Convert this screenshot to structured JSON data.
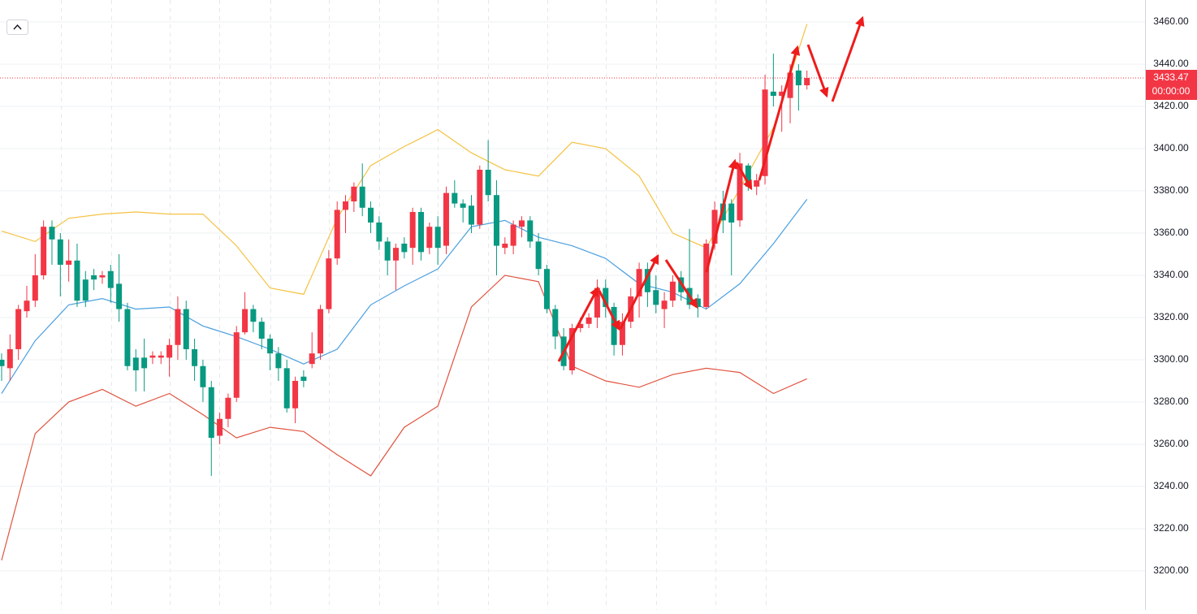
{
  "chart_data": {
    "type": "candlestick",
    "open": [
      3300,
      3296,
      3305,
      3323,
      3328,
      3340,
      3363,
      3357,
      3345,
      3347,
      3338,
      3340,
      3339,
      3342,
      3336,
      3324,
      3301,
      3301,
      3301,
      3301,
      3301,
      3307,
      3324,
      3305,
      3297,
      3287,
      3264,
      3272,
      3282,
      3313,
      3324,
      3318,
      3310,
      3303,
      3296,
      3277,
      3292,
      3298,
      3303,
      3324,
      3348,
      3371,
      3375,
      3382,
      3372,
      3365,
      3356,
      3347,
      3355,
      3353,
      3370,
      3353,
      3363,
      3354,
      3379,
      3374,
      3373,
      3364,
      3390,
      3378,
      3353,
      3354,
      3363,
      3366,
      3356,
      3343,
      3324,
      3311,
      3295,
      3315,
      3317,
      3320,
      3334,
      3325,
      3307,
      3318,
      3330,
      3343,
      3333,
      3324,
      3328,
      3339,
      3334,
      3329,
      3325,
      3355,
      3374,
      3374,
      3366,
      3392,
      3382,
      3387,
      3427,
      3425,
      3424,
      3437,
      3430
    ],
    "high": [
      3303,
      3312,
      3326,
      3335,
      3350,
      3366,
      3366,
      3360,
      3357,
      3355,
      3342,
      3343,
      3342,
      3345,
      3350,
      3327,
      3305,
      3310,
      3304,
      3304,
      3310,
      3330,
      3328,
      3310,
      3300,
      3290,
      3275,
      3284,
      3316,
      3332,
      3326,
      3320,
      3312,
      3306,
      3300,
      3292,
      3295,
      3313,
      3326,
      3352,
      3375,
      3378,
      3384,
      3393,
      3375,
      3368,
      3358,
      3355,
      3358,
      3372,
      3372,
      3365,
      3368,
      3382,
      3385,
      3376,
      3378,
      3392,
      3404,
      3385,
      3358,
      3366,
      3368,
      3368,
      3360,
      3345,
      3326,
      3315,
      3317,
      3320,
      3322,
      3338,
      3338,
      3327,
      3322,
      3334,
      3346,
      3346,
      3340,
      3332,
      3340,
      3342,
      3362,
      3331,
      3357,
      3375,
      3380,
      3376,
      3398,
      3393,
      3388,
      3435,
      3445,
      3430,
      3440,
      3440,
      3437
    ],
    "low": [
      3290,
      3290,
      3300,
      3320,
      3325,
      3338,
      3345,
      3330,
      3337,
      3325,
      3325,
      3333,
      3336,
      3327,
      3318,
      3295,
      3285,
      3285,
      3298,
      3298,
      3292,
      3300,
      3300,
      3290,
      3280,
      3245,
      3260,
      3268,
      3280,
      3312,
      3313,
      3305,
      3295,
      3290,
      3275,
      3270,
      3287,
      3296,
      3300,
      3322,
      3345,
      3360,
      3370,
      3368,
      3360,
      3352,
      3340,
      3333,
      3348,
      3345,
      3347,
      3350,
      3345,
      3350,
      3372,
      3365,
      3360,
      3362,
      3375,
      3340,
      3350,
      3350,
      3358,
      3353,
      3340,
      3322,
      3305,
      3295,
      3293,
      3313,
      3315,
      3315,
      3320,
      3302,
      3302,
      3315,
      3320,
      3325,
      3322,
      3315,
      3325,
      3328,
      3324,
      3320,
      3324,
      3352,
      3360,
      3340,
      3363,
      3380,
      3378,
      3383,
      3420,
      3408,
      3412,
      3418,
      3428
    ],
    "close": [
      3297,
      3305,
      3324,
      3328,
      3340,
      3363,
      3357,
      3345,
      3347,
      3328,
      3328,
      3338,
      3340,
      3334,
      3324,
      3297,
      3295,
      3296,
      3302,
      3302,
      3307,
      3324,
      3305,
      3297,
      3287,
      3263,
      3272,
      3282,
      3313,
      3324,
      3318,
      3310,
      3303,
      3296,
      3277,
      3290,
      3290,
      3303,
      3324,
      3348,
      3371,
      3375,
      3382,
      3372,
      3365,
      3356,
      3347,
      3353,
      3351,
      3370,
      3351,
      3363,
      3353,
      3379,
      3374,
      3372,
      3364,
      3390,
      3378,
      3354,
      3355,
      3364,
      3366,
      3356,
      3343,
      3324,
      3311,
      3297,
      3315,
      3317,
      3320,
      3334,
      3325,
      3307,
      3318,
      3330,
      3343,
      3332,
      3326,
      3328,
      3337,
      3332,
      3326,
      3325,
      3355,
      3371,
      3366,
      3365,
      3393,
      3382,
      3385,
      3428,
      3425,
      3427,
      3436,
      3430,
      3433.47
    ],
    "up_color": "#f23645",
    "down_color": "#089981",
    "series": [
      {
        "color": "#f5c242",
        "x": [
          0,
          4,
          8,
          12,
          16,
          20,
          24,
          28,
          32,
          36,
          40,
          44,
          48,
          52,
          56,
          60,
          64,
          68,
          72,
          76,
          80,
          84,
          88,
          92,
          96
        ],
        "values": [
          3361,
          3356,
          3367,
          3369,
          3370,
          3369,
          3369,
          3354,
          3334,
          3331,
          3367,
          3392,
          3401,
          3409,
          3398,
          3390,
          3387,
          3403,
          3400,
          3387,
          3360,
          3353,
          3381,
          3410,
          3459
        ]
      },
      {
        "color": "#4a9fe0",
        "x": [
          0,
          4,
          8,
          12,
          16,
          20,
          24,
          28,
          32,
          36,
          40,
          44,
          48,
          52,
          56,
          60,
          64,
          68,
          72,
          76,
          80,
          84,
          88,
          92,
          96
        ],
        "values": [
          3284,
          3309,
          3326,
          3329,
          3324,
          3325,
          3316,
          3311,
          3305,
          3298,
          3305,
          3326,
          3335,
          3343,
          3363,
          3366,
          3358,
          3354,
          3348,
          3336,
          3332,
          3324,
          3336,
          3355,
          3376
        ]
      },
      {
        "color": "#e0533f",
        "x": [
          0,
          4,
          8,
          12,
          16,
          20,
          24,
          28,
          32,
          36,
          40,
          44,
          48,
          52,
          56,
          60,
          64,
          68,
          72,
          76,
          80,
          84,
          88,
          92,
          96
        ],
        "values": [
          3205,
          3265,
          3280,
          3286,
          3278,
          3284,
          3274,
          3263,
          3268,
          3266,
          3255,
          3245,
          3268,
          3278,
          3325,
          3340,
          3337,
          3297,
          3290,
          3287,
          3293,
          3296,
          3294,
          3284,
          3291
        ]
      }
    ],
    "ylim": [
      3181.5,
      3470.4
    ],
    "yticks": [
      {
        "value": 3200,
        "label": "3200.00"
      },
      {
        "value": 3220,
        "label": "3220.00"
      },
      {
        "value": 3240,
        "label": "3240.00"
      },
      {
        "value": 3260,
        "label": "3260.00"
      },
      {
        "value": 3280,
        "label": "3280.00"
      },
      {
        "value": 3300,
        "label": "3300.00"
      },
      {
        "value": 3320,
        "label": "3320.00"
      },
      {
        "value": 3340,
        "label": "3340.00"
      },
      {
        "value": 3360,
        "label": "3360.00"
      },
      {
        "value": 3380,
        "label": "3380.00"
      },
      {
        "value": 3400,
        "label": "3400.00"
      },
      {
        "value": 3420,
        "label": "3420.00"
      },
      {
        "value": 3440,
        "label": "3440.00"
      },
      {
        "value": 3460,
        "label": "3460.00"
      }
    ],
    "grid": true,
    "last_price": 3433.47,
    "countdown": "00:00:00"
  }
}
